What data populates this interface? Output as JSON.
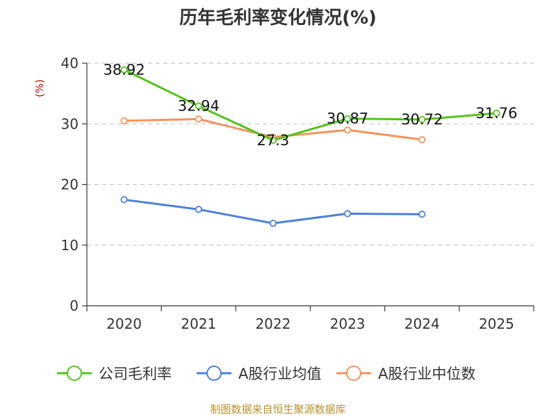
{
  "chart_data": {
    "type": "line",
    "title": "历年毛利率变化情况(%)",
    "ylabel": "(%)",
    "xlabel": "",
    "categories": [
      "2020",
      "2021",
      "2022",
      "2023",
      "2024",
      "2025"
    ],
    "ylim": [
      0,
      40
    ],
    "yticks": [
      0,
      10,
      20,
      30,
      40
    ],
    "grid": true,
    "legend_position": "bottom",
    "series": [
      {
        "name": "公司毛利率",
        "color": "#52c41a",
        "values": [
          38.92,
          32.94,
          27.3,
          30.87,
          30.72,
          31.76
        ],
        "labels": [
          "38.92",
          "32.94",
          "27.3",
          "30.87",
          "30.72",
          "31.76"
        ]
      },
      {
        "name": "A股行业均值",
        "color": "#4a7fdc",
        "values": [
          17.5,
          15.9,
          13.6,
          15.2,
          15.1,
          null
        ]
      },
      {
        "name": "A股行业中位数",
        "color": "#f5915a",
        "values": [
          30.5,
          30.8,
          27.8,
          29.0,
          27.4,
          null
        ]
      }
    ],
    "source": "制图数据来自恒生聚源数据库"
  }
}
